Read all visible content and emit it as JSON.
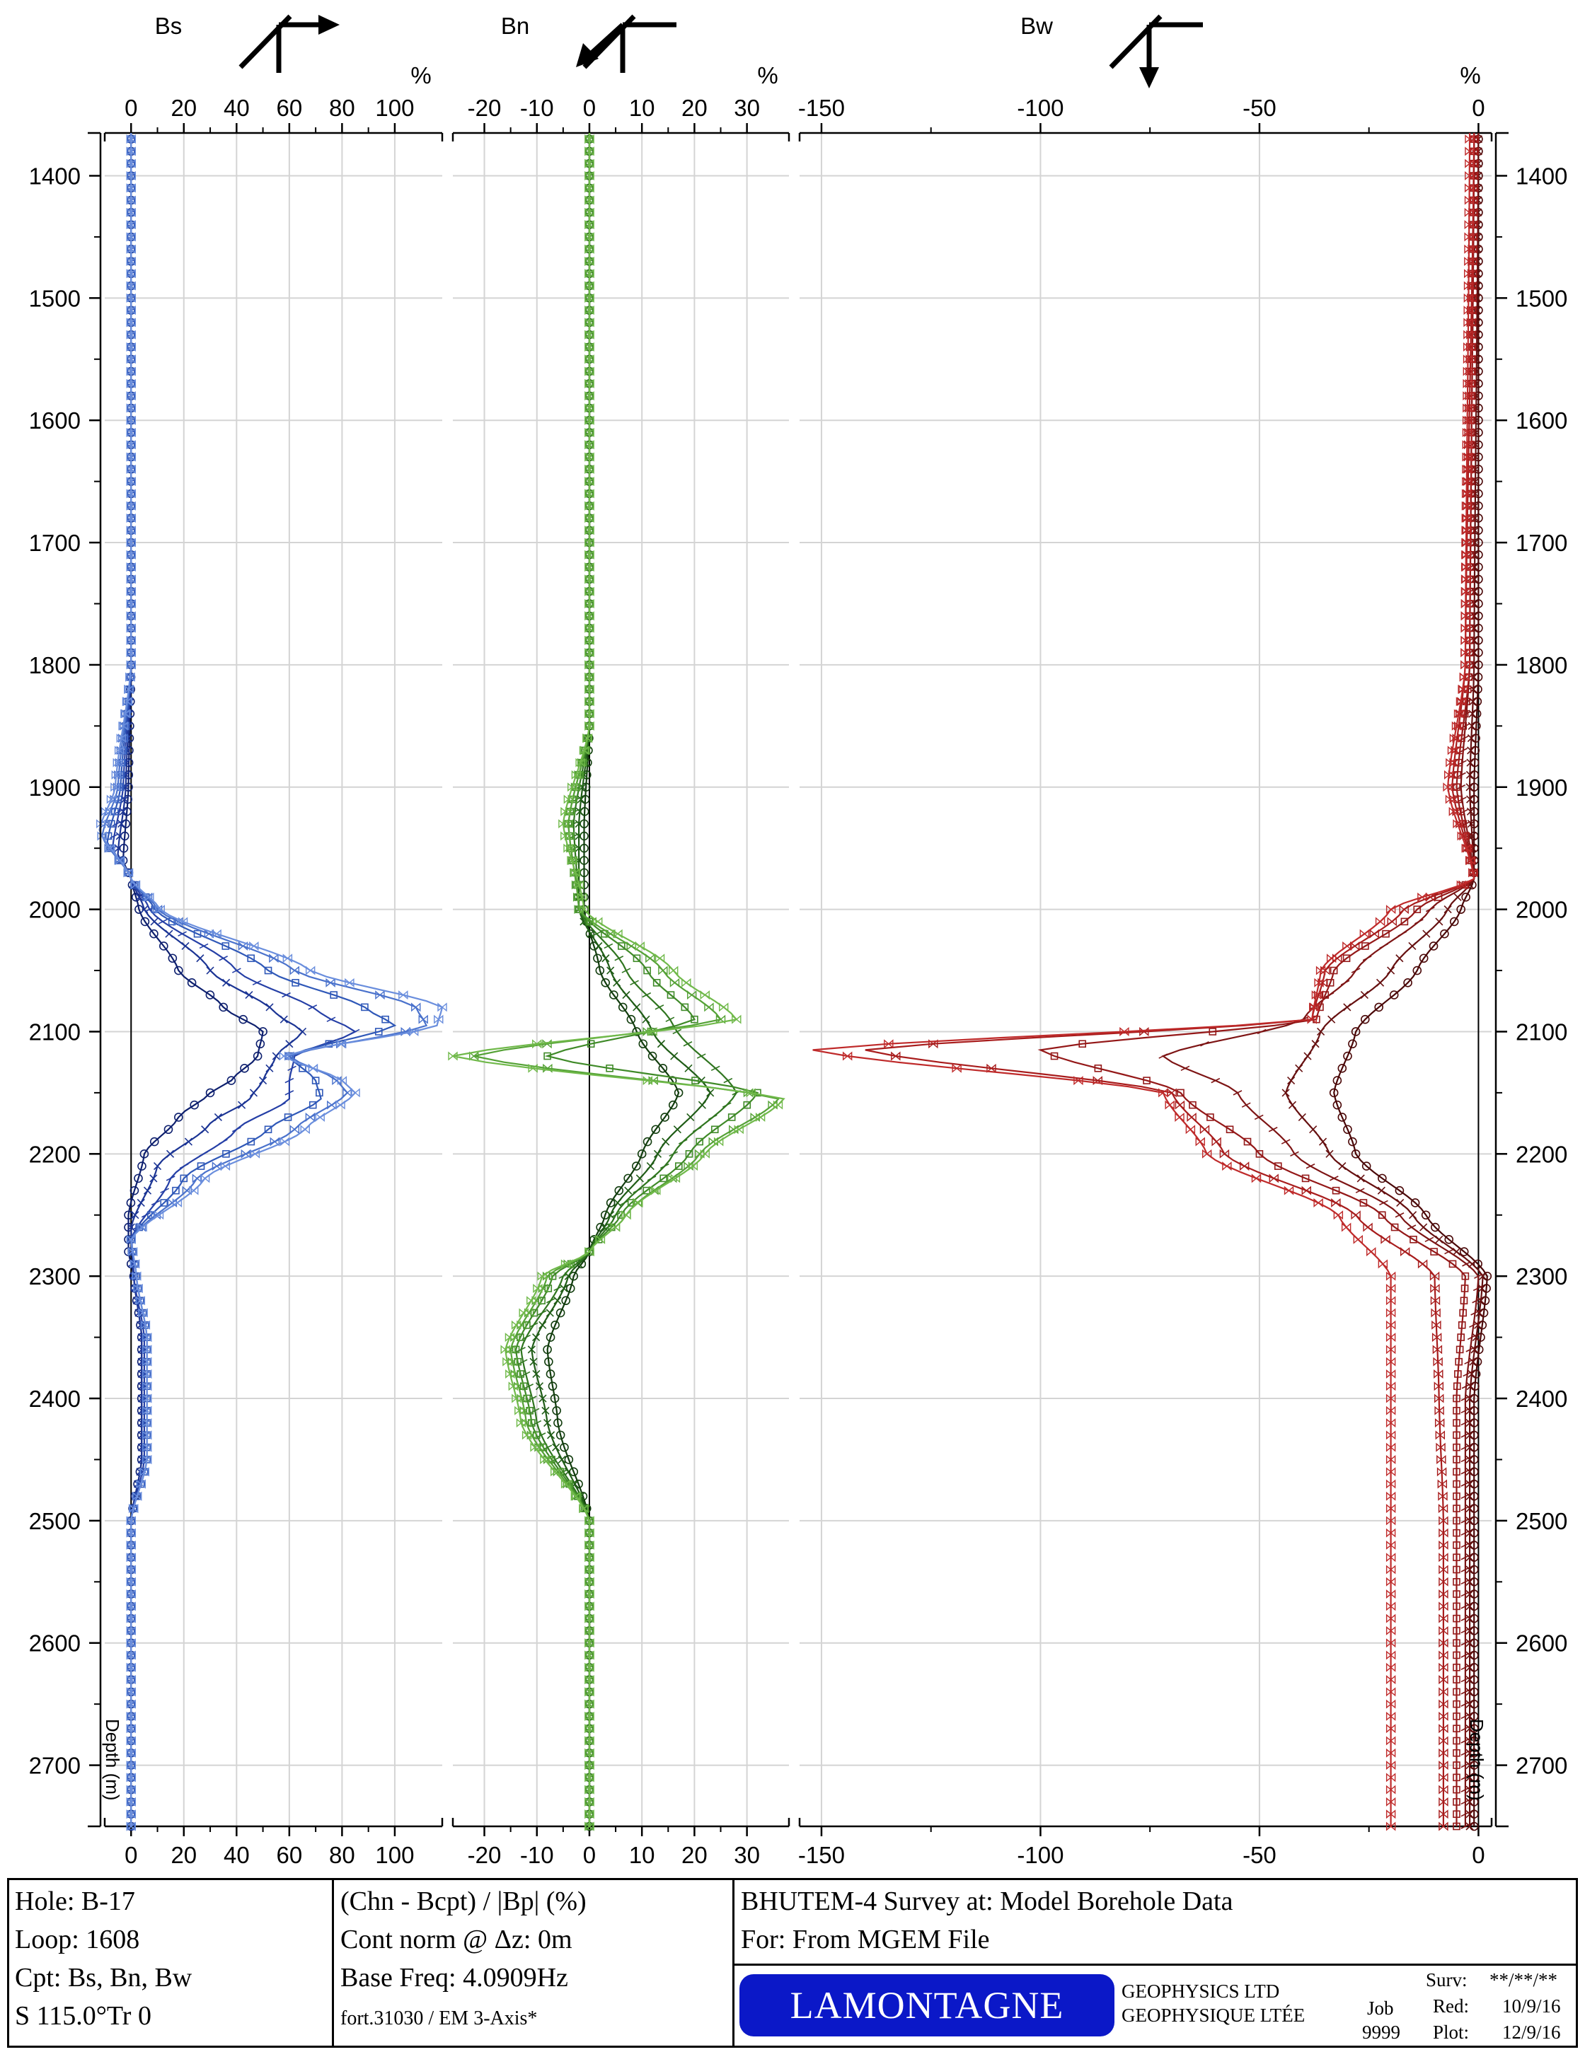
{
  "panels": [
    {
      "id": "bs",
      "title": "Bs",
      "unit": "%",
      "ticks": [
        0,
        20,
        40,
        60,
        80,
        100
      ],
      "color": "#2f58b8"
    },
    {
      "id": "bn",
      "title": "Bn",
      "unit": "%",
      "ticks": [
        -20,
        -10,
        0,
        10,
        20,
        30
      ],
      "color": "#4f9a2a"
    },
    {
      "id": "bw",
      "title": "Bw",
      "unit": "%",
      "ticks": [
        -150,
        -100,
        -50,
        0
      ],
      "color": "#a01515"
    }
  ],
  "depth_axis": {
    "label": "Depth (m)",
    "ticks": [
      1400,
      1500,
      1600,
      1700,
      1800,
      1900,
      2000,
      2100,
      2200,
      2300,
      2400,
      2500,
      2600,
      2700
    ]
  },
  "chart_data": {
    "type": "line",
    "y_axis": "Depth (m)",
    "ylim": [
      1365,
      2750
    ],
    "y_inverted": true,
    "grid": true,
    "panels": [
      {
        "name": "Bs",
        "xlim": [
          -10,
          118
        ],
        "x_unit": "%",
        "channels": [
          {
            "channel": 1,
            "depth": [
              1365,
              1800,
              1900,
              1960,
              1975,
              2000,
              2050,
              2080,
              2100,
              2120,
              2140,
              2150,
              2170,
              2200,
              2250,
              2280,
              2300,
              2350,
              2450,
              2500,
              2750
            ],
            "value": [
              0,
              0,
              -1,
              -3,
              0,
              3,
              18,
              35,
              50,
              48,
              38,
              30,
              18,
              5,
              -1,
              -1,
              1,
              4,
              4,
              0,
              0
            ]
          },
          {
            "channel": 2,
            "depth": [
              1365,
              1800,
              1900,
              1955,
              1975,
              2000,
              2050,
              2085,
              2100,
              2120,
              2140,
              2155,
              2175,
              2210,
              2260,
              2300,
              2350,
              2450,
              2500,
              2750
            ],
            "value": [
              0,
              0,
              -2,
              -5,
              0,
              5,
              30,
              55,
              65,
              55,
              50,
              45,
              30,
              10,
              0,
              1,
              4,
              4,
              0,
              0
            ]
          },
          {
            "channel": 3,
            "depth": [
              1365,
              1800,
              1900,
              1950,
              1975,
              2000,
              2050,
              2085,
              2100,
              2120,
              2140,
              2155,
              2180,
              2220,
              2270,
              2300,
              2350,
              2450,
              2500,
              2750
            ],
            "value": [
              0,
              0,
              -3,
              -7,
              0,
              7,
              40,
              72,
              85,
              62,
              60,
              60,
              40,
              15,
              0,
              1,
              5,
              5,
              0,
              0
            ]
          },
          {
            "channel": 4,
            "depth": [
              1365,
              1800,
              1900,
              1945,
              1975,
              2000,
              2050,
              2082,
              2095,
              2120,
              2140,
              2155,
              2180,
              2220,
              2270,
              2300,
              2350,
              2450,
              2500,
              2750
            ],
            "value": [
              0,
              0,
              -4,
              -9,
              0,
              9,
              52,
              90,
              100,
              60,
              70,
              72,
              52,
              20,
              0,
              2,
              6,
              6,
              0,
              0
            ]
          },
          {
            "channel": 5,
            "depth": [
              1365,
              1800,
              1900,
              1940,
              1975,
              2000,
              2050,
              2080,
              2095,
              2120,
              2140,
              2150,
              2180,
              2220,
              2270,
              2300,
              2350,
              2450,
              2500,
              2750
            ],
            "value": [
              0,
              0,
              -5,
              -11,
              0,
              10,
              62,
              108,
              112,
              60,
              78,
              82,
              62,
              25,
              0,
              2,
              6,
              6,
              0,
              0
            ]
          },
          {
            "channel": 6,
            "depth": [
              1365,
              1800,
              1900,
              1935,
              1975,
              2000,
              2050,
              2080,
              2095,
              2120,
              2140,
              2150,
              2180,
              2220,
              2270,
              2300,
              2350,
              2450,
              2500,
              2750
            ],
            "value": [
              0,
              0,
              -6,
              -12,
              0,
              11,
              68,
              118,
              116,
              58,
              80,
              85,
              66,
              28,
              0,
              2,
              6,
              6,
              0,
              0
            ]
          }
        ]
      },
      {
        "name": "Bn",
        "xlim": [
          -26,
          38
        ],
        "x_unit": "%",
        "channels": [
          {
            "channel": 1,
            "depth": [
              1365,
              1850,
              1930,
              2000,
              2050,
              2100,
              2150,
              2200,
              2250,
              2280,
              2300,
              2360,
              2420,
              2500,
              2750
            ],
            "value": [
              0,
              0,
              -1,
              -1,
              2,
              9,
              17,
              10,
              3,
              0,
              -3,
              -8,
              -6,
              0,
              0
            ]
          },
          {
            "channel": 2,
            "depth": [
              1365,
              1850,
              1930,
              2000,
              2050,
              2100,
              2150,
              2200,
              2250,
              2280,
              2300,
              2360,
              2420,
              2500,
              2750
            ],
            "value": [
              0,
              0,
              -2,
              -2,
              4,
              12,
              23,
              13,
              4,
              0,
              -4,
              -11,
              -8,
              0,
              0
            ]
          },
          {
            "channel": 3,
            "depth": [
              1365,
              1850,
              1930,
              2000,
              2050,
              2095,
              2150,
              2200,
              2250,
              2280,
              2300,
              2360,
              2420,
              2500,
              2750
            ],
            "value": [
              0,
              0,
              -3,
              -2,
              7,
              16,
              28,
              16,
              5,
              0,
              -5,
              -13,
              -10,
              0,
              0
            ]
          },
          {
            "channel": 4,
            "depth": [
              1365,
              1850,
              1930,
              2000,
              2050,
              2090,
              2120,
              2150,
              2200,
              2250,
              2280,
              2300,
              2360,
              2420,
              2500,
              2750
            ],
            "value": [
              0,
              0,
              -4,
              -2,
              11,
              20,
              -8,
              32,
              19,
              6,
              0,
              -7,
              -14,
              -11,
              0,
              0
            ]
          },
          {
            "channel": 5,
            "depth": [
              1365,
              1850,
              1930,
              2000,
              2050,
              2090,
              2120,
              2155,
              2200,
              2250,
              2280,
              2300,
              2360,
              2420,
              2500,
              2750
            ],
            "value": [
              0,
              0,
              -4,
              -2,
              14,
              25,
              -22,
              36,
              21,
              7,
              0,
              -8,
              -15,
              -12,
              0,
              0
            ]
          },
          {
            "channel": 6,
            "depth": [
              1365,
              1850,
              1930,
              2000,
              2050,
              2090,
              2120,
              2155,
              2200,
              2250,
              2280,
              2300,
              2360,
              2420,
              2500,
              2750
            ],
            "value": [
              0,
              0,
              -5,
              -1,
              16,
              28,
              -26,
              37,
              22,
              7,
              0,
              -9,
              -16,
              -13,
              0,
              0
            ]
          }
        ]
      },
      {
        "name": "Bw",
        "xlim": [
          -155,
          3
        ],
        "x_unit": "%",
        "channels": [
          {
            "channel": 1,
            "depth": [
              1365,
              1800,
              1900,
              1975,
              2000,
              2050,
              2100,
              2150,
              2200,
              2250,
              2300,
              2400,
              2500,
              2600,
              2750
            ],
            "value": [
              0,
              0,
              -1,
              -1,
              -4,
              -14,
              -28,
              -33,
              -28,
              -12,
              2,
              -1,
              -1,
              -1,
              -1
            ]
          },
          {
            "channel": 2,
            "depth": [
              1365,
              1800,
              1900,
              1975,
              2000,
              2050,
              2100,
              2150,
              2200,
              2250,
              2300,
              2400,
              2500,
              2600,
              2750
            ],
            "value": [
              0,
              -1,
              -2,
              -1,
              -7,
              -20,
              -36,
              -44,
              -34,
              -15,
              1,
              -2,
              -2,
              -2,
              -2
            ]
          },
          {
            "channel": 3,
            "depth": [
              1365,
              1800,
              1900,
              1975,
              2000,
              2050,
              2090,
              2120,
              2150,
              2200,
              2250,
              2300,
              2400,
              2500,
              2600,
              2750
            ],
            "value": [
              -1,
              -2,
              -4,
              -1,
              -11,
              -28,
              -40,
              -72,
              -55,
              -42,
              -18,
              0,
              -3,
              -3,
              -3,
              -3
            ]
          },
          {
            "channel": 4,
            "depth": [
              1365,
              1800,
              1900,
              1975,
              2000,
              2050,
              2090,
              2115,
              2150,
              2200,
              2250,
              2300,
              2400,
              2500,
              2600,
              2750
            ],
            "value": [
              -1,
              -2,
              -5,
              -1,
              -14,
              -33,
              -37,
              -100,
              -68,
              -50,
              -22,
              -3,
              -5,
              -5,
              -5,
              -5
            ]
          },
          {
            "channel": 5,
            "depth": [
              1365,
              1800,
              1900,
              1975,
              2000,
              2050,
              2090,
              2115,
              2150,
              2200,
              2250,
              2300,
              2400,
              2500,
              2600,
              2750
            ],
            "value": [
              -1,
              -3,
              -6,
              -1,
              -17,
              -35,
              -38,
              -140,
              -70,
              -58,
              -28,
              -10,
              -9,
              -8,
              -8,
              -8
            ]
          },
          {
            "channel": 6,
            "depth": [
              1365,
              1800,
              1900,
              1975,
              2000,
              2050,
              2090,
              2115,
              2150,
              2200,
              2250,
              2300,
              2400,
              2500,
              2600,
              2750
            ],
            "value": [
              -2,
              -3,
              -7,
              -1,
              -20,
              -36,
              -38,
              -152,
              -72,
              -62,
              -32,
              -20,
              -20,
              -20,
              -20,
              -20
            ]
          }
        ]
      }
    ]
  },
  "footer": {
    "col1": [
      "Hole: B-17",
      "Loop: 1608",
      "Cpt: Bs, Bn, Bw",
      "S 115.0°Tr 0"
    ],
    "col2": [
      "(Chn - Bcpt) / |Bp| (%)",
      "Cont norm @ Δz: 0m",
      "Base Freq: 4.0909Hz",
      "fort.31030 / EM 3-Axis*"
    ],
    "col3_title": "BHUTEM-4 Survey at:  Model Borehole Data",
    "col3_sub": "For:  From MGEM File",
    "logo_text": "LAMONTAGNE",
    "company_line1": "GEOPHYSICS LTD",
    "company_line2": "GEOPHYSIQUE LTÉE",
    "job_label": "Job",
    "job_value": "9999",
    "surv_label": "Surv:",
    "surv_value": "**/**/**",
    "red_label": "Red:",
    "red_value": "10/9/16",
    "plot_label": "Plot:",
    "plot_value": "12/9/16"
  }
}
